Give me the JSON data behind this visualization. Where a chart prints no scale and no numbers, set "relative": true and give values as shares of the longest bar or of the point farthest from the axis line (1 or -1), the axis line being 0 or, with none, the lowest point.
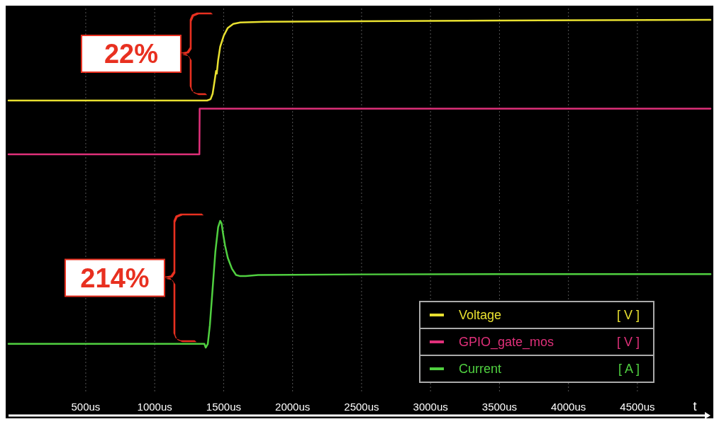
{
  "chart_data": [
    {
      "type": "line",
      "relative": true,
      "xlim": [
        -60,
        5030
      ],
      "xticks": [
        {
          "value": 500,
          "label": null
        },
        {
          "value": 1000,
          "label": null
        },
        {
          "value": 1500,
          "label": null
        },
        {
          "value": 2000,
          "label": null
        },
        {
          "value": 2500,
          "label": null
        },
        {
          "value": 3000,
          "label": null
        },
        {
          "value": 3500,
          "label": null
        },
        {
          "value": 4000,
          "label": null
        },
        {
          "value": 4500,
          "label": null
        }
      ],
      "tick_labels": false,
      "grid": "x",
      "annotations": [
        "22%"
      ],
      "series": [
        {
          "name": "Voltage",
          "color": "#e8e030",
          "x": [
            -60,
            1000,
            1380,
            1405,
            1420,
            1435,
            1445,
            1450,
            1460,
            1475,
            1500,
            1530,
            1570,
            1620,
            1800,
            2500,
            3500,
            5030
          ],
          "values": [
            0.4,
            0.4,
            0.4,
            0.41,
            0.45,
            0.55,
            0.62,
            0.6,
            0.7,
            0.8,
            0.88,
            0.94,
            0.97,
            0.98,
            0.985,
            0.99,
            0.995,
            1.0
          ]
        },
        {
          "name": "GPIO_gate_mos",
          "color": "#e0307a",
          "x": [
            -60,
            1000,
            1324,
            1326,
            2500,
            5030
          ],
          "values": [
            0,
            0,
            0,
            0.34,
            0.34,
            0.34
          ]
        }
      ]
    },
    {
      "type": "line",
      "relative": true,
      "xlim": [
        -60,
        5030
      ],
      "xticks": [
        {
          "value": 500,
          "label": "500us"
        },
        {
          "value": 1000,
          "label": "1000us"
        },
        {
          "value": 1500,
          "label": "1500us"
        },
        {
          "value": 2000,
          "label": "2000us"
        },
        {
          "value": 2500,
          "label": "2500us"
        },
        {
          "value": 3000,
          "label": "3000us"
        },
        {
          "value": 3500,
          "label": "3500us"
        },
        {
          "value": 4000,
          "label": "4000us"
        },
        {
          "value": 4500,
          "label": "4500us"
        }
      ],
      "tick_labels": "x",
      "grid": "x",
      "xlabel": "t",
      "legend": "bottom right",
      "annotations": [
        "214%",
        "[ V ]",
        "[ V ]",
        "[ A ]"
      ],
      "series": [
        {
          "name": "Current",
          "color": "#50d040",
          "x": [
            -60,
            1000,
            1360,
            1370,
            1385,
            1400,
            1420,
            1440,
            1460,
            1475,
            1485,
            1495,
            1510,
            1530,
            1560,
            1590,
            1620,
            1660,
            1750,
            2500,
            3500,
            5030
          ],
          "values": [
            0.368,
            0.368,
            0.368,
            0.349,
            0.368,
            0.463,
            0.652,
            0.842,
            0.968,
            1.0,
            0.987,
            0.937,
            0.874,
            0.81,
            0.754,
            0.722,
            0.716,
            0.716,
            0.722,
            0.725,
            0.726,
            0.726
          ]
        }
      ]
    }
  ]
}
